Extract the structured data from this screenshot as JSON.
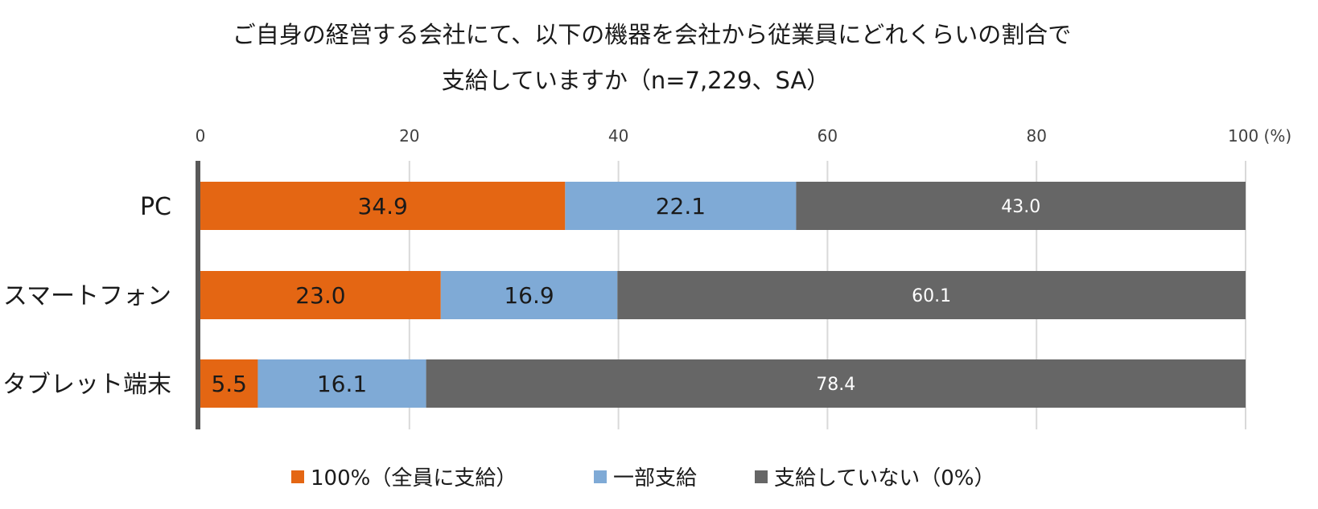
{
  "chart_data": {
    "type": "bar",
    "orientation": "horizontal",
    "stacked": true,
    "title_lines": [
      "ご自身の経営する会社にて、以下の機器を会社から従業員にどれくらいの割合で",
      "支給していますか（n=7,229、SA）"
    ],
    "categories": [
      "PC",
      "スマートフォン",
      "タブレット端末"
    ],
    "series": [
      {
        "name": "100%（全員に支給）",
        "color": "#E46613",
        "label_color": "#1a1a1a",
        "values": [
          34.9,
          23.0,
          5.5
        ]
      },
      {
        "name": "一部支給",
        "color": "#7FAAD6",
        "label_color": "#1a1a1a",
        "values": [
          22.1,
          16.9,
          16.1
        ]
      },
      {
        "name": "支給していない（0%）",
        "color": "#666666",
        "label_color": "#ffffff",
        "values": [
          43.0,
          60.1,
          78.4
        ]
      }
    ],
    "data_labels": [
      [
        "34.9",
        "22.1",
        "43.0"
      ],
      [
        "23.0",
        "16.9",
        "60.1"
      ],
      [
        "5.5",
        "16.1",
        "78.4"
      ]
    ],
    "x_ticks": [
      0,
      20,
      40,
      60,
      80,
      100
    ],
    "x_tick_labels": [
      "0",
      "20",
      "40",
      "60",
      "80",
      "100 (%)"
    ],
    "xlim": [
      0,
      100
    ],
    "x_axis_position": "top",
    "grid": true,
    "legend_position": "bottom"
  }
}
